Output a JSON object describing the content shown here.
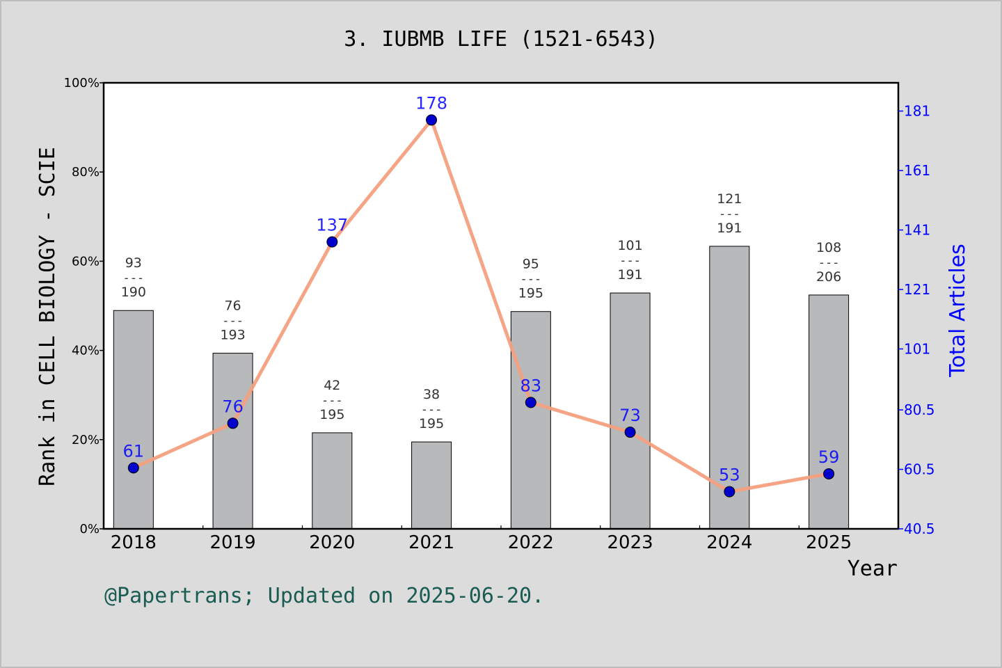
{
  "chart_data": {
    "type": "bar+line",
    "title": "3. IUBMB LIFE (1521-6543)",
    "xlabel": "Year",
    "ylabel_left": "Rank in CELL BIOLOGY - SCIE",
    "ylabel_right": "Total Articles",
    "categories": [
      "2018",
      "2019",
      "2020",
      "2021",
      "2022",
      "2023",
      "2024",
      "2025"
    ],
    "left_axis": {
      "ylim": [
        0,
        1
      ],
      "ticks": [
        0,
        0.2,
        0.4,
        0.6,
        0.8,
        1.0
      ],
      "tick_labels": [
        "0%",
        "20%",
        "40%",
        "60%",
        "80%",
        "100%"
      ]
    },
    "right_axis": {
      "ylim": [
        40.5,
        190.5
      ],
      "ticks": [
        40.5,
        60.5,
        80.5,
        101,
        121,
        141,
        161,
        181
      ],
      "tick_labels": [
        "40.5",
        "60.5",
        "80.5",
        "101",
        "121",
        "141",
        "161",
        "181"
      ]
    },
    "rank_bars": {
      "rank": [
        93,
        76,
        42,
        38,
        95,
        101,
        121,
        108
      ],
      "total": [
        190,
        193,
        195,
        195,
        195,
        191,
        191,
        206
      ],
      "fraction_labels": [
        {
          "num": "93",
          "sep": "---",
          "den": "190"
        },
        {
          "num": "76",
          "sep": "---",
          "den": "193"
        },
        {
          "num": "42",
          "sep": "---",
          "den": "195"
        },
        {
          "num": "38",
          "sep": "---",
          "den": "195"
        },
        {
          "num": "95",
          "sep": "---",
          "den": "195"
        },
        {
          "num": "101",
          "sep": "---",
          "den": "191"
        },
        {
          "num": "121",
          "sep": "---",
          "den": "191"
        },
        {
          "num": "108",
          "sep": "---",
          "den": "206"
        }
      ]
    },
    "articles_line": {
      "values": [
        61,
        76,
        137,
        178,
        83,
        73,
        53,
        59
      ],
      "labels": [
        "61",
        "76",
        "137",
        "178",
        "83",
        "73",
        "53",
        "59"
      ]
    },
    "colors": {
      "background": "#dcdcdc",
      "plot_bg": "#ffffff",
      "bar": "#b8b9bb",
      "line": "#f4a07e",
      "marker": "#0000cc",
      "right_axis": "#0000ff",
      "footer": "#1a5c52"
    }
  },
  "footer": "@Papertrans; Updated on 2025-06-20."
}
